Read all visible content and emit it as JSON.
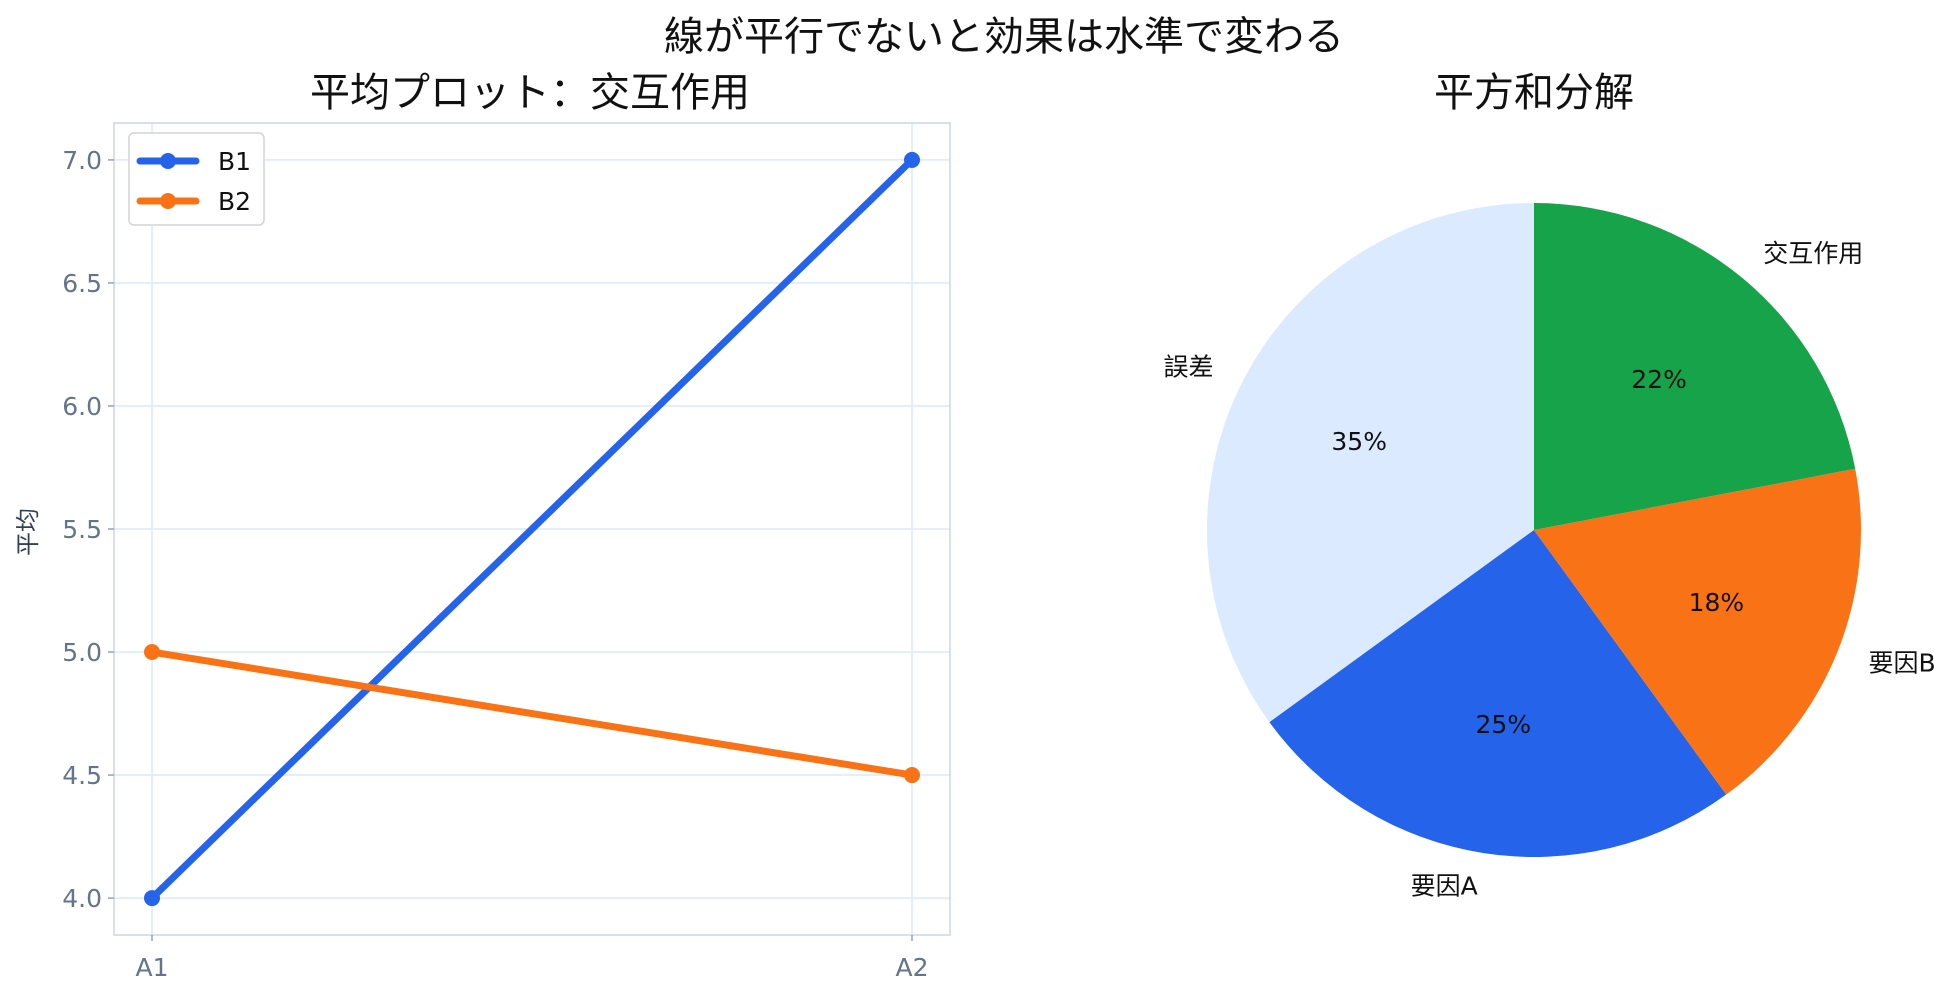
{
  "figure": {
    "title": "線が平行でないと効果は水準で変わる"
  },
  "chart_data": [
    {
      "type": "line",
      "title": "平均プロット：交互作用",
      "xlabel": "",
      "ylabel": "平均",
      "categories": [
        "A1",
        "A2"
      ],
      "series": [
        {
          "name": "B1",
          "values": [
            4.0,
            7.0
          ],
          "color": "#2563eb"
        },
        {
          "name": "B2",
          "values": [
            5.0,
            4.5
          ],
          "color": "#f97316"
        }
      ],
      "ylim": [
        3.85,
        7.15
      ],
      "yticks": [
        "4.0",
        "4.5",
        "5.0",
        "5.5",
        "6.0",
        "6.5",
        "7.0"
      ],
      "grid": true,
      "legend": "top-left"
    },
    {
      "type": "pie",
      "title": "平方和分解",
      "slices": [
        {
          "label": "誤差",
          "value": 35,
          "pct": "35%",
          "color": "#dbeafe"
        },
        {
          "label": "要因A",
          "value": 25,
          "pct": "25%",
          "color": "#2563eb"
        },
        {
          "label": "要因B",
          "value": 18,
          "pct": "18%",
          "color": "#f97316"
        },
        {
          "label": "交互作用",
          "value": 22,
          "pct": "22%",
          "color": "#16a34a"
        }
      ]
    }
  ]
}
